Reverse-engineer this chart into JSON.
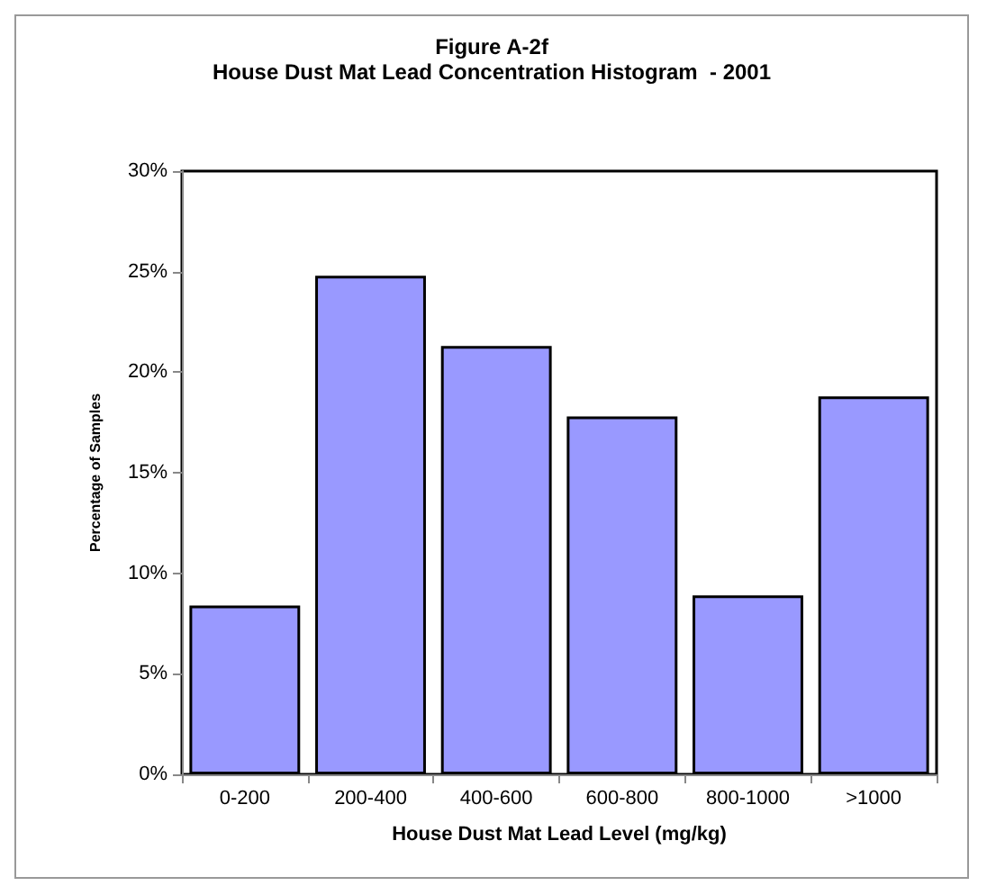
{
  "chart_data": {
    "type": "bar",
    "title": "Figure A-2f",
    "subtitle": "House Dust Mat Lead Concentration Histogram  - 2001",
    "xlabel": "House Dust Mat Lead Level (mg/kg)",
    "ylabel": "Percentage of Samples",
    "categories": [
      "0-200",
      "200-400",
      "400-600",
      "600-800",
      "800-1000",
      ">1000"
    ],
    "values": [
      8.4,
      24.8,
      21.3,
      17.8,
      8.9,
      18.8
    ],
    "color": "#9999ff",
    "ylim": [
      0,
      30
    ],
    "yticks": [
      {
        "value": 0,
        "label": "0%"
      },
      {
        "value": 5,
        "label": "5%"
      },
      {
        "value": 10,
        "label": "10%"
      },
      {
        "value": 15,
        "label": "15%"
      },
      {
        "value": 20,
        "label": "20%"
      },
      {
        "value": 25,
        "label": "25%"
      },
      {
        "value": 30,
        "label": "30%"
      }
    ]
  }
}
